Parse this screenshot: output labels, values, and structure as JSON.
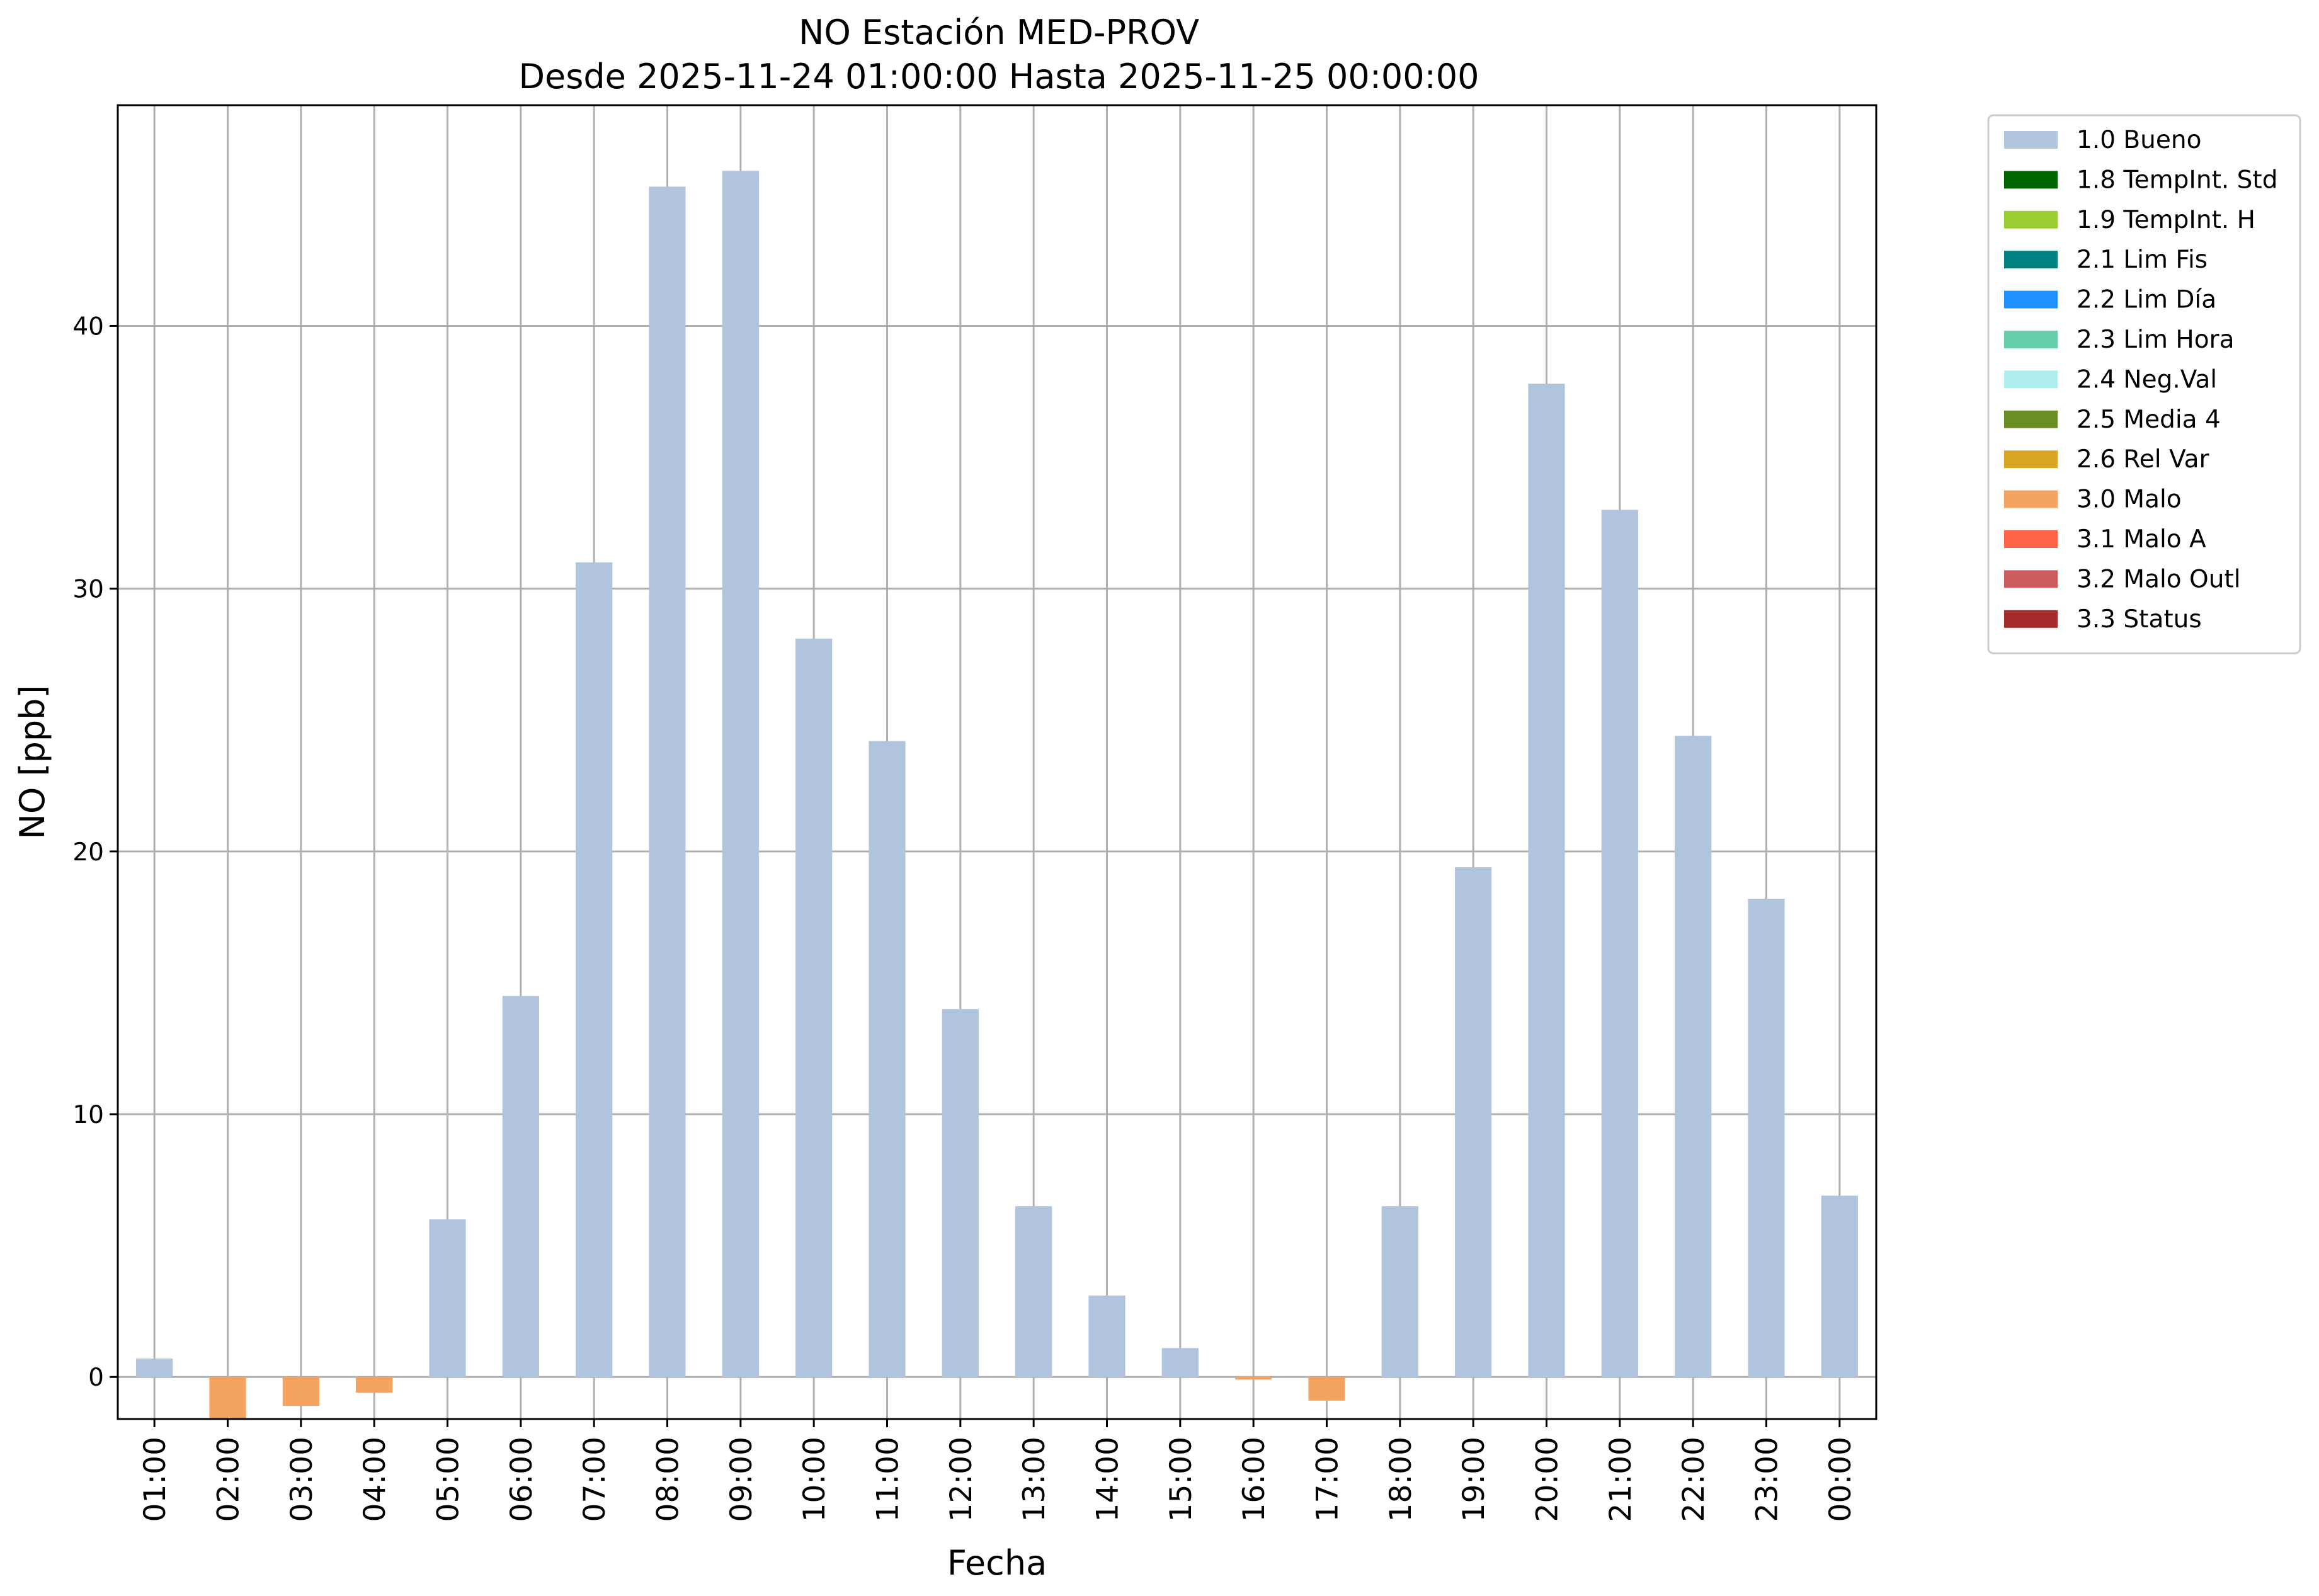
{
  "chart_data": {
    "type": "bar",
    "title": "NO Estación MED-PROV",
    "subtitle": "Desde 2025-11-24 01:00:00 Hasta 2025-11-25 00:00:00",
    "xlabel": "Fecha",
    "ylabel": "NO [ppb]",
    "ylim": [
      -1.6,
      48.4
    ],
    "yticks": [
      0,
      10,
      20,
      30,
      40
    ],
    "grid": true,
    "legend_position": "outside-top-right",
    "categories": [
      "01:00",
      "02:00",
      "03:00",
      "04:00",
      "05:00",
      "06:00",
      "07:00",
      "08:00",
      "09:00",
      "10:00",
      "11:00",
      "12:00",
      "13:00",
      "14:00",
      "15:00",
      "16:00",
      "17:00",
      "18:00",
      "19:00",
      "20:00",
      "21:00",
      "22:00",
      "23:00",
      "00:00"
    ],
    "values": [
      0.7,
      -1.6,
      -1.1,
      -0.6,
      6.0,
      14.5,
      31.0,
      45.3,
      45.9,
      28.1,
      24.2,
      14.0,
      6.5,
      3.1,
      1.1,
      -0.1,
      -0.9,
      6.5,
      19.4,
      37.8,
      33.0,
      24.4,
      18.2,
      6.9
    ],
    "flags": [
      "1.0 Bueno",
      "3.0 Malo",
      "3.0 Malo",
      "3.0 Malo",
      "1.0 Bueno",
      "1.0 Bueno",
      "1.0 Bueno",
      "1.0 Bueno",
      "1.0 Bueno",
      "1.0 Bueno",
      "1.0 Bueno",
      "1.0 Bueno",
      "1.0 Bueno",
      "1.0 Bueno",
      "1.0 Bueno",
      "3.0 Malo",
      "3.0 Malo",
      "1.0 Bueno",
      "1.0 Bueno",
      "1.0 Bueno",
      "1.0 Bueno",
      "1.0 Bueno",
      "1.0 Bueno",
      "1.0 Bueno"
    ],
    "legend": [
      {
        "label": "1.0 Bueno",
        "color": "#b0c4de"
      },
      {
        "label": "1.8 TempInt. Std",
        "color": "#006400"
      },
      {
        "label": "1.9 TempInt. H",
        "color": "#9acd32"
      },
      {
        "label": "2.1 Lim Fis",
        "color": "#008080"
      },
      {
        "label": "2.2 Lim Día",
        "color": "#1e90ff"
      },
      {
        "label": "2.3 Lim Hora",
        "color": "#66cdaa"
      },
      {
        "label": "2.4 Neg.Val",
        "color": "#afeeee"
      },
      {
        "label": "2.5 Media 4",
        "color": "#6b8e23"
      },
      {
        "label": "2.6 Rel Var",
        "color": "#daa520"
      },
      {
        "label": "3.0 Malo",
        "color": "#f4a460"
      },
      {
        "label": "3.1 Malo A",
        "color": "#ff6347"
      },
      {
        "label": "3.2 Malo Outl",
        "color": "#cd5c5c"
      },
      {
        "label": "3.3 Status",
        "color": "#a52a2a"
      }
    ]
  }
}
